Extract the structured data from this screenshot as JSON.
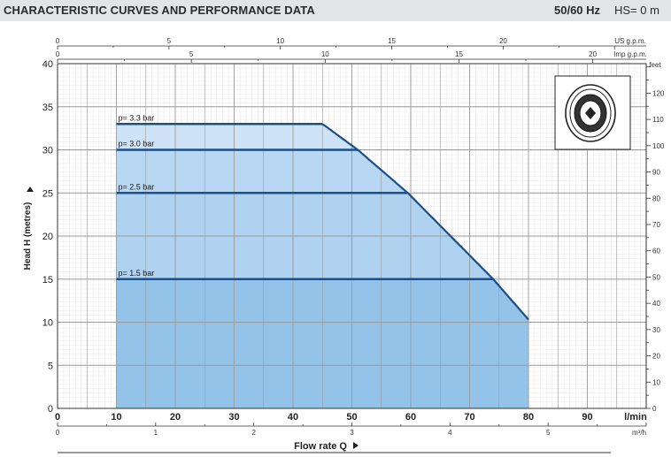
{
  "header": {
    "title": "CHARACTERISTIC CURVES AND PERFORMANCE DATA",
    "frequency": "50/60 Hz",
    "suction_height": "HS= 0 m"
  },
  "chart_data": {
    "type": "area",
    "ylabel": "Head H (metres)",
    "xlabel": "Flow rate  Q",
    "x_unit": "l/min",
    "xlim": [
      0,
      100
    ],
    "ylim": [
      0,
      40
    ],
    "grid": true,
    "y_ticks": [
      0,
      5,
      10,
      15,
      20,
      25,
      30,
      35,
      40
    ],
    "x_ticks": [
      0,
      10,
      20,
      30,
      40,
      50,
      60,
      70,
      80,
      90
    ],
    "secondary_axes": {
      "us_gpm": {
        "label": "US g.p.m.",
        "ticks": [
          0,
          5,
          10,
          15,
          20
        ]
      },
      "imp_gpm": {
        "label": "Imp g.p.m.",
        "ticks": [
          0,
          5,
          10,
          15,
          20
        ]
      },
      "m3h": {
        "label": "m³/h",
        "ticks": [
          0,
          1,
          2,
          3,
          4,
          5
        ]
      },
      "feet": {
        "label": "feet",
        "ticks": [
          0,
          10,
          20,
          30,
          40,
          50,
          60,
          70,
          80,
          90,
          100,
          110,
          120
        ]
      }
    },
    "pump_curve": {
      "x": [
        45,
        51,
        59.5,
        74,
        80
      ],
      "y": [
        33,
        30,
        25,
        15,
        10.3
      ]
    },
    "pressure_lines": [
      {
        "label": "p= 3.3 bar",
        "head": 33,
        "x_start": 10,
        "x_end": 45
      },
      {
        "label": "p= 3.0 bar",
        "head": 30,
        "x_start": 10,
        "x_end": 51
      },
      {
        "label": "p= 2.5 bar",
        "head": 25,
        "x_start": 10,
        "x_end": 59.5
      },
      {
        "label": "p= 1.5 bar",
        "head": 15,
        "x_start": 10,
        "x_end": 74
      }
    ],
    "operating_range": {
      "x_min": 10,
      "x_max": 80
    },
    "colors": {
      "curve": "#1b4f8a",
      "fill_light": "#cfe3f6",
      "fill_mid": "#a6cdef",
      "fill_dark": "#7fb7e6"
    }
  },
  "icons": {
    "pump_thumbnail": "pump-impeller-icon"
  }
}
